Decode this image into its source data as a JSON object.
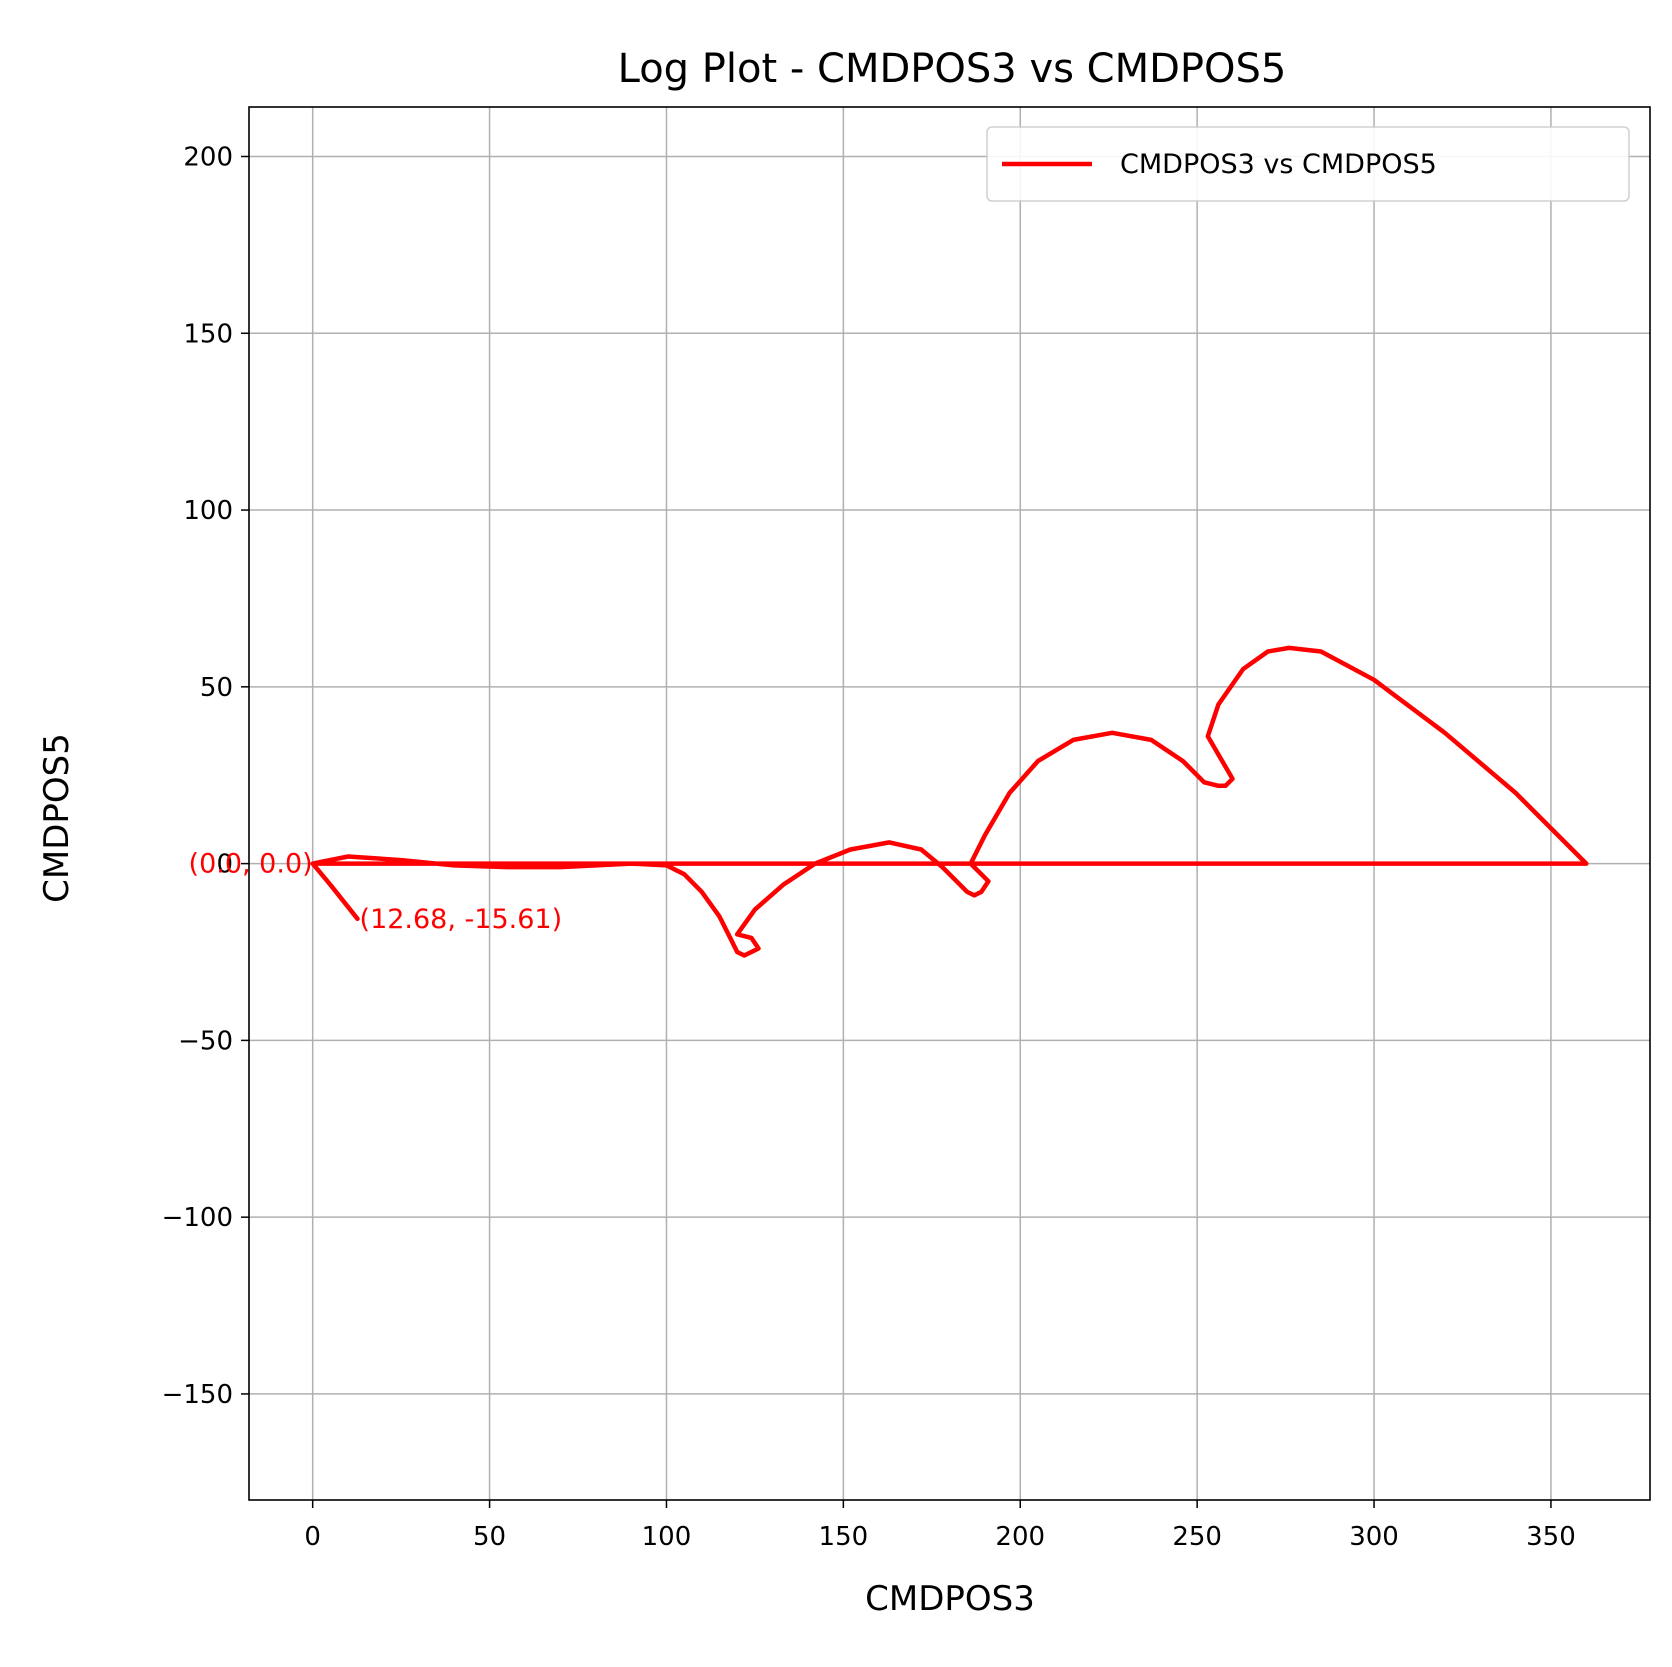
{
  "chart_data": {
    "type": "line",
    "title": "Log Plot - CMDPOS3 vs CMDPOS5",
    "xlabel": "CMDPOS3",
    "ylabel": "CMDPOS5",
    "xlim": [
      -18,
      378
    ],
    "ylim": [
      -180,
      214
    ],
    "xticks": [
      0,
      50,
      100,
      150,
      200,
      250,
      300,
      350
    ],
    "yticks": [
      -150,
      -100,
      -50,
      0,
      50,
      100,
      150,
      200
    ],
    "xtick_labels": [
      "0",
      "50",
      "100",
      "150",
      "200",
      "250",
      "300",
      "350"
    ],
    "ytick_labels": [
      "−150",
      "−100",
      "−50",
      "0",
      "50",
      "100",
      "150",
      "200"
    ],
    "grid": true,
    "legend_position": "top-right",
    "colors": {
      "series": "#ff0000"
    },
    "series": [
      {
        "name": "CMDPOS3 vs CMDPOS5",
        "x": [
          0,
          0,
          10,
          25,
          40,
          55,
          70,
          90,
          100,
          105,
          110,
          115,
          118,
          120,
          122,
          124,
          126,
          124,
          120,
          125,
          133,
          142,
          152,
          163,
          172,
          178,
          182,
          185,
          187,
          189,
          191,
          189,
          186,
          190,
          197,
          205,
          215,
          226,
          237,
          246,
          252,
          256,
          258,
          260,
          253,
          256,
          263,
          270,
          276,
          285,
          300,
          320,
          340,
          360,
          340,
          300,
          250,
          200,
          150,
          100,
          50,
          20,
          0,
          5,
          12.68
        ],
        "y": [
          0,
          0,
          2,
          1,
          -0.5,
          -1,
          -1,
          0,
          -0.5,
          -3,
          -8,
          -15,
          -21,
          -25,
          -26,
          -25,
          -24,
          -21,
          -20,
          -13,
          -6,
          0,
          4,
          6,
          4,
          -1,
          -5,
          -8,
          -9,
          -8,
          -5,
          -3,
          0,
          8,
          20,
          29,
          35,
          37,
          35,
          29,
          23,
          22,
          22,
          24,
          36,
          45,
          55,
          60,
          61,
          60,
          52,
          37,
          20,
          0,
          0,
          0,
          0,
          0,
          0,
          0,
          0,
          0,
          0,
          -6,
          -15.61
        ]
      }
    ],
    "annotations": [
      {
        "text": "(0.0, 0.0)",
        "x": 0,
        "y": 0,
        "align": "end"
      },
      {
        "text": "(12.68, -15.61)",
        "x": 12.68,
        "y": -15.61,
        "align": "start"
      }
    ]
  }
}
